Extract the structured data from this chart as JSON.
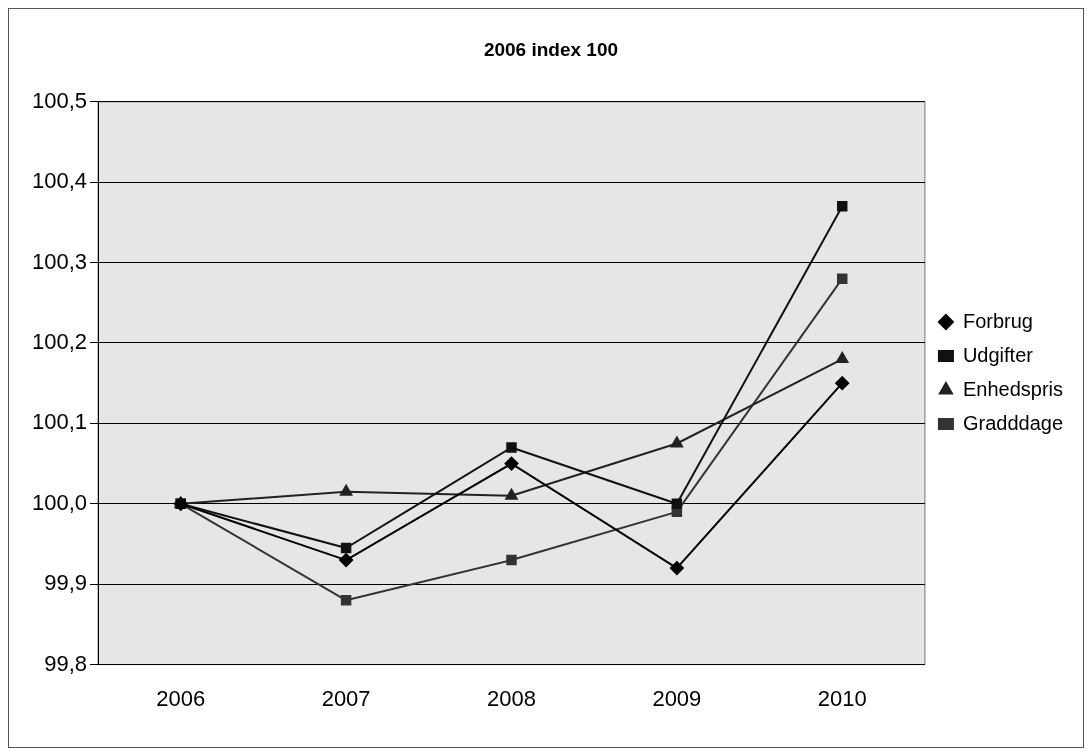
{
  "chart_data": {
    "type": "line",
    "title": "2006 index 100",
    "categories": [
      "2006",
      "2007",
      "2008",
      "2009",
      "2010"
    ],
    "series": [
      {
        "name": "Forbrug",
        "color": "#000000",
        "marker": "diamond",
        "values": [
          100,
          99.93,
          100.05,
          99.92,
          100.15
        ]
      },
      {
        "name": "Udgifter",
        "color": "#111111",
        "marker": "square",
        "values": [
          100,
          99.945,
          100.07,
          100.0,
          100.37
        ]
      },
      {
        "name": "Enhedspris",
        "color": "#222222",
        "marker": "triangle",
        "values": [
          100,
          100.015,
          100.01,
          100.075,
          100.18
        ]
      },
      {
        "name": "Gradddage",
        "color": "#333333",
        "marker": "square",
        "values": [
          100,
          99.88,
          99.93,
          99.99,
          100.28
        ]
      }
    ],
    "ylim": [
      99.8,
      100.5
    ],
    "yticks": [
      {
        "value": 99.8,
        "label": "99,8"
      },
      {
        "value": 99.9,
        "label": "99,9"
      },
      {
        "value": 100,
        "label": "100,0"
      },
      {
        "value": 100.1,
        "label": "100,1"
      },
      {
        "value": 100.2,
        "label": "100,2"
      },
      {
        "value": 100.3,
        "label": "100,3"
      },
      {
        "value": 100.4,
        "label": "100,4"
      },
      {
        "value": 100.5,
        "label": "100,5"
      }
    ],
    "grid": "y",
    "legend": "right",
    "line_style": "solid"
  }
}
